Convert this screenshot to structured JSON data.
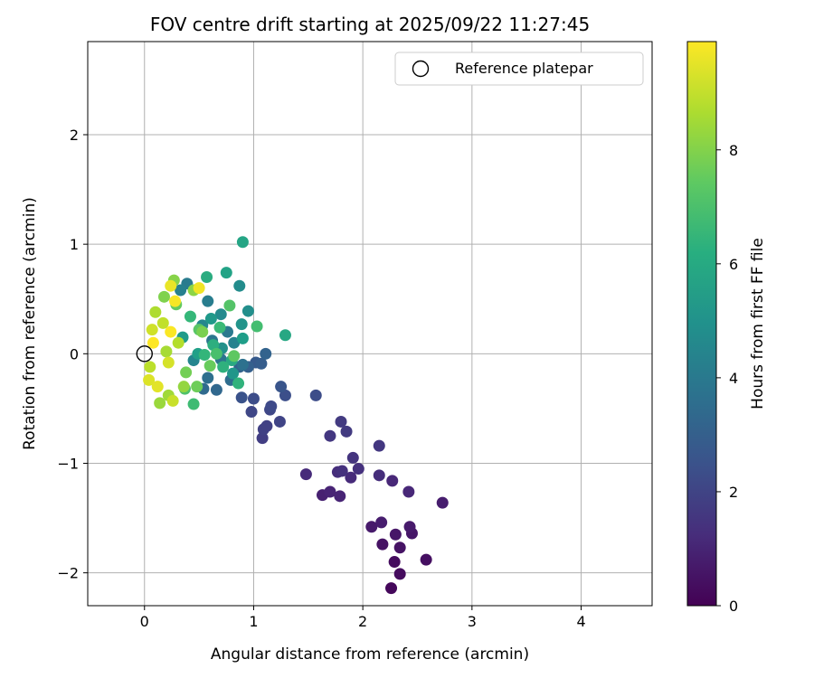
{
  "chart_data": {
    "type": "scatter",
    "title": "FOV centre drift starting at 2025/09/22 11:27:45",
    "xlabel": "Angular distance from reference (arcmin)",
    "ylabel": "Rotation from reference (arcmin)",
    "xlim": [
      -0.52,
      4.65
    ],
    "ylim": [
      -2.3,
      2.85
    ],
    "xticks": [
      0,
      1,
      2,
      3,
      4
    ],
    "yticks": [
      -2,
      -1,
      0,
      1,
      2
    ],
    "grid": true,
    "legend": {
      "position": "top-right",
      "entries": [
        "Reference platepar"
      ]
    },
    "reference_point": {
      "x": 0,
      "y": 0,
      "label": "Reference platepar"
    },
    "colorbar": {
      "label": "Hours from first FF file",
      "min": 0,
      "max": 9.9,
      "ticks": [
        0,
        2,
        4,
        6,
        8
      ],
      "colormap": "viridis"
    },
    "points": [
      {
        "x": 2.26,
        "y": -2.14,
        "h": 0.2
      },
      {
        "x": 2.34,
        "y": -2.01,
        "h": 0.3
      },
      {
        "x": 2.29,
        "y": -1.9,
        "h": 0.3
      },
      {
        "x": 2.58,
        "y": -1.88,
        "h": 0.4
      },
      {
        "x": 2.34,
        "y": -1.77,
        "h": 0.5
      },
      {
        "x": 2.18,
        "y": -1.74,
        "h": 0.5
      },
      {
        "x": 2.3,
        "y": -1.65,
        "h": 0.6
      },
      {
        "x": 2.45,
        "y": -1.64,
        "h": 0.6
      },
      {
        "x": 2.43,
        "y": -1.58,
        "h": 0.7
      },
      {
        "x": 2.08,
        "y": -1.58,
        "h": 0.7
      },
      {
        "x": 2.17,
        "y": -1.54,
        "h": 0.8
      },
      {
        "x": 2.73,
        "y": -1.36,
        "h": 0.8
      },
      {
        "x": 1.63,
        "y": -1.29,
        "h": 0.9
      },
      {
        "x": 1.79,
        "y": -1.3,
        "h": 1.0
      },
      {
        "x": 1.7,
        "y": -1.26,
        "h": 1.0
      },
      {
        "x": 2.42,
        "y": -1.26,
        "h": 1.1
      },
      {
        "x": 2.27,
        "y": -1.16,
        "h": 1.1
      },
      {
        "x": 1.89,
        "y": -1.13,
        "h": 1.2
      },
      {
        "x": 1.48,
        "y": -1.1,
        "h": 1.2
      },
      {
        "x": 2.15,
        "y": -1.11,
        "h": 1.3
      },
      {
        "x": 1.77,
        "y": -1.08,
        "h": 1.3
      },
      {
        "x": 1.81,
        "y": -1.07,
        "h": 1.4
      },
      {
        "x": 1.96,
        "y": -1.05,
        "h": 1.4
      },
      {
        "x": 1.91,
        "y": -0.95,
        "h": 1.5
      },
      {
        "x": 2.15,
        "y": -0.84,
        "h": 1.6
      },
      {
        "x": 1.7,
        "y": -0.75,
        "h": 1.6
      },
      {
        "x": 1.85,
        "y": -0.71,
        "h": 1.7
      },
      {
        "x": 1.8,
        "y": -0.62,
        "h": 1.7
      },
      {
        "x": 1.08,
        "y": -0.77,
        "h": 1.8
      },
      {
        "x": 1.09,
        "y": -0.69,
        "h": 1.9
      },
      {
        "x": 1.12,
        "y": -0.66,
        "h": 1.9
      },
      {
        "x": 1.24,
        "y": -0.62,
        "h": 2.0
      },
      {
        "x": 0.98,
        "y": -0.53,
        "h": 2.1
      },
      {
        "x": 1.15,
        "y": -0.51,
        "h": 2.1
      },
      {
        "x": 1.16,
        "y": -0.48,
        "h": 2.2
      },
      {
        "x": 1.0,
        "y": -0.41,
        "h": 2.3
      },
      {
        "x": 1.57,
        "y": -0.38,
        "h": 2.3
      },
      {
        "x": 1.29,
        "y": -0.38,
        "h": 2.4
      },
      {
        "x": 0.89,
        "y": -0.4,
        "h": 2.5
      },
      {
        "x": 1.25,
        "y": -0.3,
        "h": 2.6
      },
      {
        "x": 1.02,
        "y": -0.08,
        "h": 2.8
      },
      {
        "x": 1.07,
        "y": -0.09,
        "h": 2.9
      },
      {
        "x": 0.95,
        "y": -0.12,
        "h": 3.0
      },
      {
        "x": 1.11,
        "y": 0.0,
        "h": 3.1
      },
      {
        "x": 0.87,
        "y": -0.12,
        "h": 3.1
      },
      {
        "x": 0.66,
        "y": -0.33,
        "h": 3.3
      },
      {
        "x": 0.54,
        "y": -0.32,
        "h": 3.4
      },
      {
        "x": 0.79,
        "y": -0.24,
        "h": 3.5
      },
      {
        "x": 0.58,
        "y": -0.22,
        "h": 3.6
      },
      {
        "x": 0.9,
        "y": -0.1,
        "h": 3.7
      },
      {
        "x": 0.7,
        "y": -0.05,
        "h": 3.8
      },
      {
        "x": 0.62,
        "y": 0.12,
        "h": 3.9
      },
      {
        "x": 0.76,
        "y": 0.2,
        "h": 4.0
      },
      {
        "x": 0.39,
        "y": 0.64,
        "h": 4.1
      },
      {
        "x": 0.58,
        "y": 0.48,
        "h": 4.2
      },
      {
        "x": 0.33,
        "y": 0.58,
        "h": 4.3
      },
      {
        "x": 0.82,
        "y": 0.1,
        "h": 4.4
      },
      {
        "x": 0.45,
        "y": -0.06,
        "h": 4.5
      },
      {
        "x": 0.53,
        "y": 0.26,
        "h": 4.6
      },
      {
        "x": 0.7,
        "y": 0.36,
        "h": 4.7
      },
      {
        "x": 0.87,
        "y": 0.62,
        "h": 4.8
      },
      {
        "x": 0.95,
        "y": 0.39,
        "h": 4.9
      },
      {
        "x": 0.71,
        "y": 0.05,
        "h": 5.0
      },
      {
        "x": 0.89,
        "y": 0.27,
        "h": 5.1
      },
      {
        "x": 0.81,
        "y": -0.18,
        "h": 5.2
      },
      {
        "x": 0.61,
        "y": 0.32,
        "h": 5.3
      },
      {
        "x": 0.35,
        "y": 0.15,
        "h": 5.4
      },
      {
        "x": 0.9,
        "y": 0.14,
        "h": 5.5
      },
      {
        "x": 0.49,
        "y": 0.0,
        "h": 5.6
      },
      {
        "x": 0.75,
        "y": 0.74,
        "h": 5.7
      },
      {
        "x": 0.9,
        "y": 1.02,
        "h": 5.8
      },
      {
        "x": 1.29,
        "y": 0.17,
        "h": 5.9
      },
      {
        "x": 0.8,
        "y": -0.06,
        "h": 6.0
      },
      {
        "x": 0.57,
        "y": 0.7,
        "h": 6.1
      },
      {
        "x": 0.63,
        "y": 0.08,
        "h": 6.2
      },
      {
        "x": 0.72,
        "y": -0.12,
        "h": 6.3
      },
      {
        "x": 0.86,
        "y": -0.27,
        "h": 6.4
      },
      {
        "x": 0.55,
        "y": -0.01,
        "h": 6.5
      },
      {
        "x": 0.42,
        "y": 0.34,
        "h": 6.6
      },
      {
        "x": 0.69,
        "y": 0.24,
        "h": 6.7
      },
      {
        "x": 0.45,
        "y": -0.46,
        "h": 6.8
      },
      {
        "x": 1.03,
        "y": 0.25,
        "h": 6.9
      },
      {
        "x": 0.66,
        "y": 0.0,
        "h": 7.0
      },
      {
        "x": 0.37,
        "y": -0.32,
        "h": 7.1
      },
      {
        "x": 0.78,
        "y": 0.44,
        "h": 7.2
      },
      {
        "x": 0.5,
        "y": 0.22,
        "h": 7.3
      },
      {
        "x": 0.82,
        "y": -0.02,
        "h": 7.4
      },
      {
        "x": 0.29,
        "y": 0.45,
        "h": 7.5
      },
      {
        "x": 0.6,
        "y": -0.11,
        "h": 7.6
      },
      {
        "x": 0.48,
        "y": -0.3,
        "h": 7.7
      },
      {
        "x": 0.38,
        "y": -0.17,
        "h": 7.8
      },
      {
        "x": 0.53,
        "y": 0.2,
        "h": 7.9
      },
      {
        "x": 0.18,
        "y": 0.52,
        "h": 8.0
      },
      {
        "x": 0.27,
        "y": 0.67,
        "h": 8.1
      },
      {
        "x": 0.45,
        "y": 0.58,
        "h": 8.2
      },
      {
        "x": 0.36,
        "y": -0.3,
        "h": 8.3
      },
      {
        "x": 0.14,
        "y": -0.45,
        "h": 8.4
      },
      {
        "x": 0.22,
        "y": -0.38,
        "h": 8.5
      },
      {
        "x": 0.2,
        "y": 0.02,
        "h": 8.6
      },
      {
        "x": 0.1,
        "y": 0.38,
        "h": 8.7
      },
      {
        "x": 0.31,
        "y": 0.1,
        "h": 8.8
      },
      {
        "x": 0.05,
        "y": -0.12,
        "h": 8.9
      },
      {
        "x": 0.17,
        "y": 0.28,
        "h": 9.0
      },
      {
        "x": 0.26,
        "y": -0.43,
        "h": 9.1
      },
      {
        "x": 0.07,
        "y": 0.22,
        "h": 9.2
      },
      {
        "x": 0.22,
        "y": -0.08,
        "h": 9.3
      },
      {
        "x": 0.04,
        "y": -0.24,
        "h": 9.4
      },
      {
        "x": 0.12,
        "y": -0.3,
        "h": 9.5
      },
      {
        "x": 0.24,
        "y": 0.62,
        "h": 9.6
      },
      {
        "x": 0.5,
        "y": 0.6,
        "h": 9.7
      },
      {
        "x": 0.28,
        "y": 0.48,
        "h": 9.8
      },
      {
        "x": 0.24,
        "y": 0.2,
        "h": 9.85
      },
      {
        "x": 0.08,
        "y": 0.1,
        "h": 9.9
      }
    ]
  }
}
